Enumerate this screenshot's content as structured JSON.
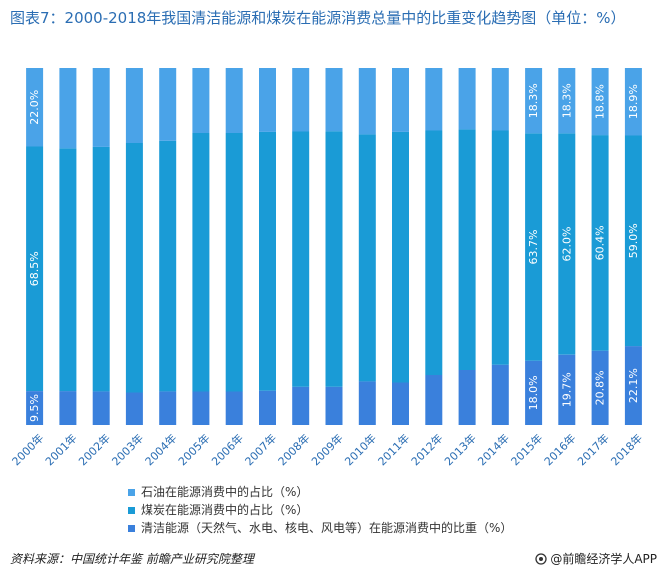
{
  "title": "图表7：2000-2018年我国清洁能源和煤炭在能源消费总量中的比重变化趋势图（单位：%）",
  "source": "资料来源：中国统计年鉴 前瞻产业研究院整理",
  "brand": "@前瞻经济学人APP",
  "colors": {
    "oil": "#4aa3e8",
    "coal": "#1a9bd6",
    "clean": "#3a80dc"
  },
  "chart_data": {
    "type": "bar",
    "stacked": true,
    "categories": [
      "2000年",
      "2001年",
      "2002年",
      "2003年",
      "2004年",
      "2005年",
      "2006年",
      "2007年",
      "2008年",
      "2009年",
      "2010年",
      "2011年",
      "2012年",
      "2013年",
      "2014年",
      "2015年",
      "2016年",
      "2017年",
      "2018年"
    ],
    "series": [
      {
        "name": "清洁能源（天然气、水电、核电、风电等）在能源消费中的比重（%）",
        "key": "clean",
        "values": [
          9.5,
          9.5,
          9.4,
          9.1,
          9.4,
          9.4,
          9.4,
          9.6,
          10.7,
          10.7,
          12.2,
          11.9,
          14.0,
          15.4,
          16.9,
          18.0,
          19.7,
          20.8,
          22.1
        ]
      },
      {
        "name": "煤炭在能源消费中的占比（%）",
        "key": "coal",
        "values": [
          68.5,
          68.0,
          68.5,
          69.9,
          70.2,
          72.4,
          72.4,
          72.5,
          71.5,
          71.6,
          69.2,
          70.2,
          68.5,
          67.4,
          65.6,
          63.7,
          62.0,
          60.4,
          59.0
        ]
      },
      {
        "name": "石油在能源消费中的占比（%）",
        "key": "oil",
        "values": [
          22.0,
          22.5,
          22.1,
          21.0,
          20.4,
          18.2,
          18.2,
          17.9,
          17.8,
          17.7,
          18.6,
          17.9,
          17.5,
          17.2,
          17.5,
          18.3,
          18.3,
          18.8,
          18.9
        ]
      }
    ],
    "data_labels": {
      "clean": {
        "2000年": "9.5%",
        "2015年": "18.0%",
        "2016年": "19.7%",
        "2017年": "20.8%",
        "2018年": "22.1%"
      },
      "coal": {
        "2000年": "68.5%",
        "2015年": "63.7%",
        "2016年": "62.0%",
        "2017年": "60.4%",
        "2018年": "59.0%"
      },
      "oil": {
        "2000年": "22.0%",
        "2015年": "18.3%",
        "2016年": "18.3%",
        "2017年": "18.8%",
        "2018年": "18.9%"
      }
    },
    "ylim": [
      0,
      100
    ],
    "legend_order": [
      "oil",
      "coal",
      "clean"
    ],
    "legend": [
      {
        "key": "oil",
        "label": "石油在能源消费中的占比（%）"
      },
      {
        "key": "coal",
        "label": "煤炭在能源消费中的占比（%）"
      },
      {
        "key": "clean",
        "label": "清洁能源（天然气、水电、核电、风电等）在能源消费中的比重（%）"
      }
    ],
    "legend_position": "bottom",
    "grid": false
  }
}
